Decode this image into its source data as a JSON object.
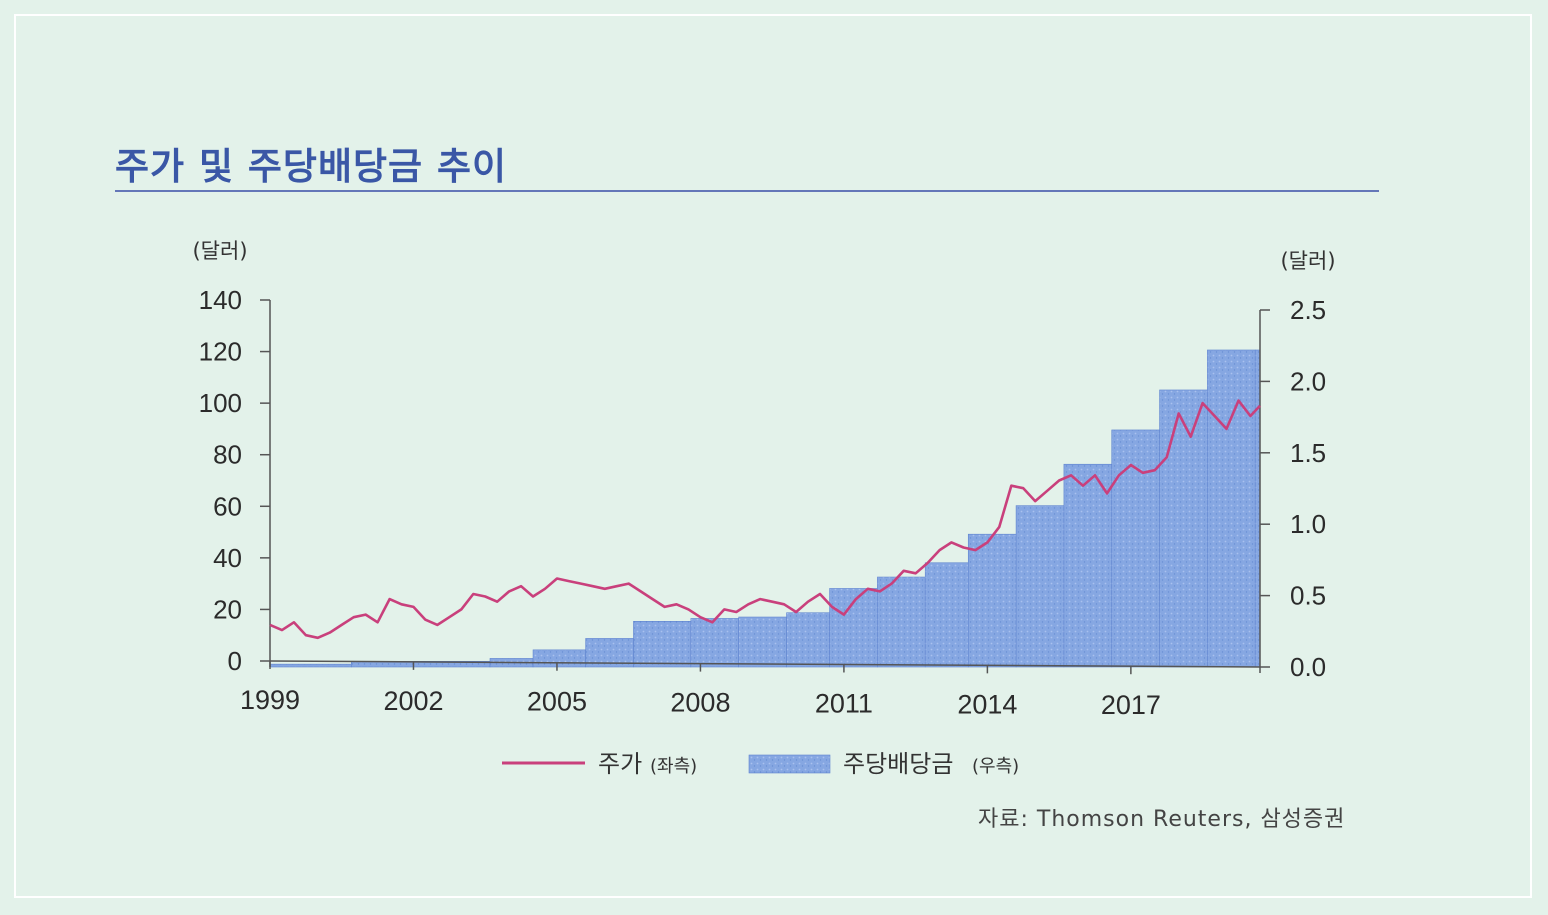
{
  "title": "주가 및 주당배당금 추이",
  "source": "자료: Thomson Reuters, 삼성증권",
  "colors": {
    "price": "#c9407c",
    "dividend": "#7ea2e0",
    "dividend_edge": "#5f84cf",
    "title": "#3a57a6",
    "background": "#e3f2ea"
  },
  "chart_data": {
    "type": "line+bar",
    "title": "주가 및 주당배당금 추이",
    "left_axis": {
      "unit": "(달러)",
      "range": [
        0,
        140
      ],
      "ticks": [
        "0",
        "20",
        "40",
        "60",
        "80",
        "100",
        "120",
        "140"
      ],
      "tick_values": [
        0,
        20,
        40,
        60,
        80,
        100,
        120,
        140
      ]
    },
    "right_axis": {
      "unit": "(달러)",
      "range": [
        0,
        2.5
      ],
      "ticks": [
        "0.0",
        "0.5",
        "1.0",
        "1.5",
        "2.0",
        "2.5"
      ],
      "tick_values": [
        0,
        0.5,
        1.0,
        1.5,
        2.0,
        2.5
      ]
    },
    "x_axis": {
      "range": [
        1999,
        2019.7
      ],
      "ticks": [
        "1999",
        "2002",
        "2005",
        "2008",
        "2011",
        "2014",
        "2017"
      ],
      "tick_values": [
        1999,
        2002,
        2005,
        2008,
        2011,
        2014,
        2017
      ]
    },
    "legend": [
      {
        "label": "주가",
        "suffix": "(좌측)",
        "kind": "line"
      },
      {
        "label": "주당배당금",
        "suffix": "(우측)",
        "kind": "bar"
      }
    ],
    "series": [
      {
        "name": "주가",
        "axis": "left",
        "type": "line",
        "x": [
          1999.0,
          1999.25,
          1999.5,
          1999.75,
          2000.0,
          2000.25,
          2000.5,
          2000.75,
          2001.0,
          2001.25,
          2001.5,
          2001.75,
          2002.0,
          2002.25,
          2002.5,
          2002.75,
          2003.0,
          2003.25,
          2003.5,
          2003.75,
          2004.0,
          2004.25,
          2004.5,
          2004.75,
          2005.0,
          2005.25,
          2005.5,
          2005.75,
          2006.0,
          2006.25,
          2006.5,
          2006.75,
          2007.0,
          2007.25,
          2007.5,
          2007.75,
          2008.0,
          2008.25,
          2008.5,
          2008.75,
          2009.0,
          2009.25,
          2009.5,
          2009.75,
          2010.0,
          2010.25,
          2010.5,
          2010.75,
          2011.0,
          2011.25,
          2011.5,
          2011.75,
          2012.0,
          2012.25,
          2012.5,
          2012.75,
          2013.0,
          2013.25,
          2013.5,
          2013.75,
          2014.0,
          2014.25,
          2014.5,
          2014.75,
          2015.0,
          2015.25,
          2015.5,
          2015.75,
          2016.0,
          2016.25,
          2016.5,
          2016.75,
          2017.0,
          2017.25,
          2017.5,
          2017.75,
          2018.0,
          2018.25,
          2018.5,
          2018.75,
          2019.0,
          2019.25,
          2019.5,
          2019.7
        ],
        "values": [
          14,
          12,
          15,
          10,
          9,
          11,
          14,
          17,
          18,
          15,
          24,
          22,
          21,
          16,
          14,
          17,
          20,
          26,
          25,
          23,
          27,
          29,
          25,
          28,
          32,
          31,
          30,
          29,
          28,
          29,
          30,
          27,
          24,
          21,
          22,
          20,
          17,
          15,
          20,
          19,
          22,
          24,
          23,
          22,
          19,
          23,
          26,
          21,
          18,
          24,
          28,
          27,
          30,
          35,
          34,
          38,
          43,
          46,
          44,
          43,
          46,
          52,
          68,
          67,
          62,
          66,
          70,
          72,
          68,
          72,
          65,
          72,
          76,
          73,
          74,
          79,
          96,
          87,
          100,
          95,
          90,
          101,
          95,
          99
        ]
      },
      {
        "name": "주당배당금",
        "axis": "right",
        "type": "step-bar",
        "x_start": [
          1999.0,
          2000.7,
          2003.6,
          2004.5,
          2005.6,
          2006.6,
          2007.8,
          2008.8,
          2009.8,
          2010.7,
          2011.7,
          2012.7,
          2013.6,
          2014.6,
          2015.6,
          2016.6,
          2017.6,
          2018.6,
          2019.6
        ],
        "values": [
          0.02,
          0.04,
          0.06,
          0.12,
          0.2,
          0.32,
          0.34,
          0.35,
          0.38,
          0.55,
          0.63,
          0.73,
          0.93,
          1.13,
          1.42,
          1.66,
          1.94,
          2.22,
          2.22
        ]
      }
    ],
    "x_end": 2019.7
  }
}
